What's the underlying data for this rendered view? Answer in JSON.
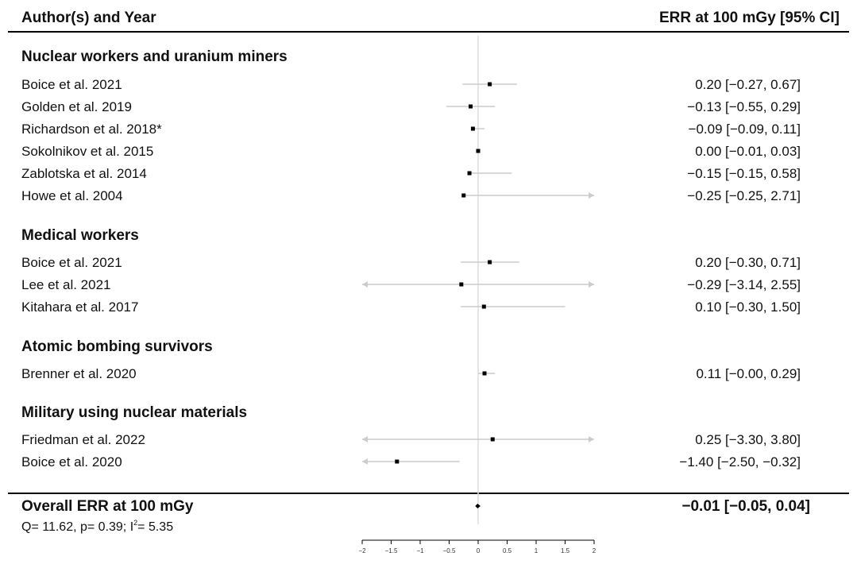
{
  "header": {
    "left": "Author(s) and Year",
    "right": "ERR at 100 mGy [95% CI]"
  },
  "chart_data": {
    "type": "forest",
    "xlim": [
      -2,
      2
    ],
    "x_ticks": [
      "−2",
      "−1.5",
      "−1",
      "−0.5",
      "0",
      "0.5",
      "1",
      "1.5",
      "2"
    ],
    "x_tick_values": [
      -2,
      -1.5,
      -1,
      -0.5,
      0,
      0.5,
      1,
      1.5,
      2
    ],
    "reference_line": 0,
    "groups": [
      {
        "name": "Nuclear workers and uranium miners",
        "studies": [
          {
            "label": "Boice et al. 2021",
            "est": 0.2,
            "lo": -0.27,
            "hi": 0.67,
            "text": "0.20 [−0.27, 0.67]"
          },
          {
            "label": "Golden et al. 2019",
            "est": -0.13,
            "lo": -0.55,
            "hi": 0.29,
            "text": "−0.13 [−0.55, 0.29]"
          },
          {
            "label": "Richardson et al. 2018*",
            "est": -0.09,
            "lo": -0.09,
            "hi": 0.11,
            "text": "−0.09 [−0.09, 0.11]"
          },
          {
            "label": "Sokolnikov et al. 2015",
            "est": 0.0,
            "lo": -0.01,
            "hi": 0.03,
            "text": "0.00 [−0.01, 0.03]"
          },
          {
            "label": "Zablotska et al. 2014",
            "est": -0.15,
            "lo": -0.15,
            "hi": 0.58,
            "text": "−0.15 [−0.15, 0.58]"
          },
          {
            "label": "Howe et al. 2004",
            "est": -0.25,
            "lo": -0.25,
            "hi": 2.71,
            "text": "−0.25 [−0.25, 2.71]"
          }
        ]
      },
      {
        "name": "Medical workers",
        "studies": [
          {
            "label": "Boice et al. 2021",
            "est": 0.2,
            "lo": -0.3,
            "hi": 0.71,
            "text": "0.20 [−0.30, 0.71]"
          },
          {
            "label": "Lee et al. 2021",
            "est": -0.29,
            "lo": -3.14,
            "hi": 2.55,
            "text": "−0.29 [−3.14, 2.55]"
          },
          {
            "label": "Kitahara et al. 2017",
            "est": 0.1,
            "lo": -0.3,
            "hi": 1.5,
            "text": "0.10 [−0.30, 1.50]"
          }
        ]
      },
      {
        "name": "Atomic bombing survivors",
        "studies": [
          {
            "label": "Brenner et al. 2020",
            "est": 0.11,
            "lo": -0.0,
            "hi": 0.29,
            "text": "0.11 [−0.00, 0.29]"
          }
        ]
      },
      {
        "name": "Military using nuclear materials",
        "studies": [
          {
            "label": "Friedman et al. 2022",
            "est": 0.25,
            "lo": -3.3,
            "hi": 3.8,
            "text": "0.25 [−3.30, 3.80]"
          },
          {
            "label": "Boice et al. 2020",
            "est": -1.4,
            "lo": -2.5,
            "hi": -0.32,
            "text": "−1.40 [−2.50, −0.32]"
          }
        ]
      }
    ],
    "overall": {
      "label": "Overall ERR at 100 mGy",
      "est": -0.01,
      "lo": -0.05,
      "hi": 0.04,
      "text": "−0.01 [−0.05, 0.04]",
      "stats_prefix": "Q= 11.62, p= 0.39; I",
      "stats_sup": "2",
      "stats_suffix": "= 5.35"
    },
    "colors": {
      "point": "#000000",
      "ci_line": "#cccccc",
      "ref_line": "#dddddd",
      "rule": "#000000"
    }
  }
}
